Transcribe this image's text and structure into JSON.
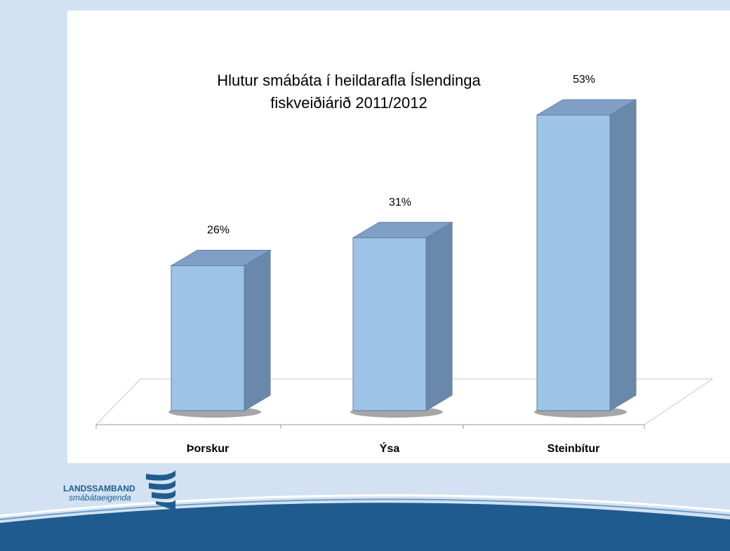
{
  "chart_data": {
    "type": "bar3d",
    "title": [
      "Hlutur smábáta í heildarafla Íslendinga",
      "fiskveiðiárið 2011/2012"
    ],
    "categories": [
      "Þorskur",
      "Ýsa",
      "Steinbítur"
    ],
    "values": [
      26,
      31,
      53
    ],
    "value_labels": [
      "26%",
      "31%",
      "53%"
    ],
    "color": "#9dc3e6"
  },
  "logo": {
    "name": "LANDSSAMBAND",
    "subtitle": "smábátaeigenda"
  }
}
